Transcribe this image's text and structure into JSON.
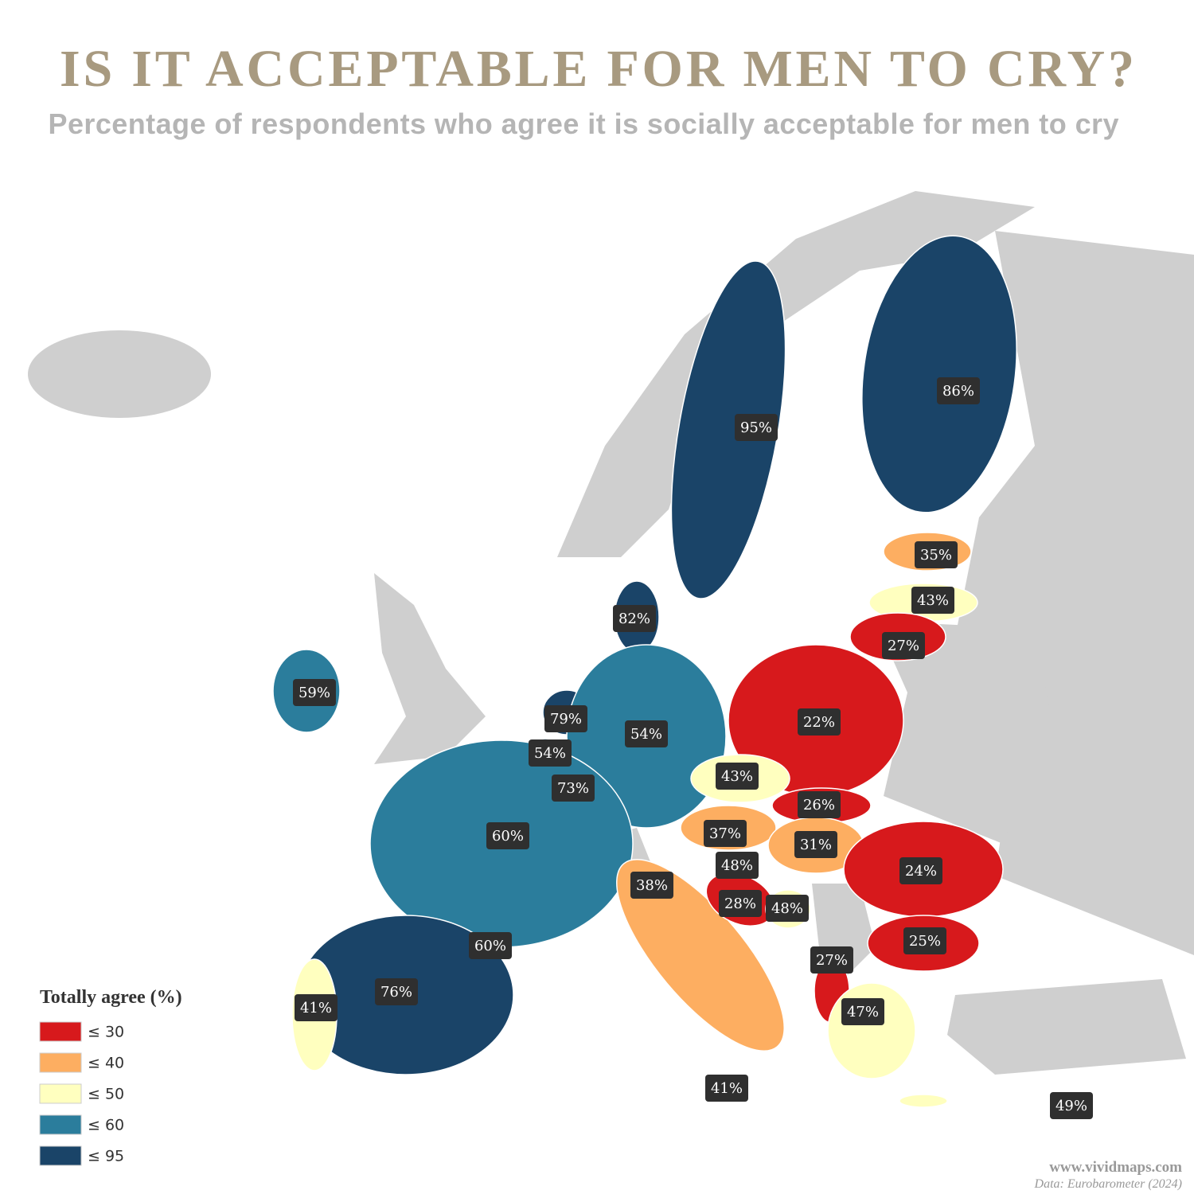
{
  "title": "IS IT ACCEPTABLE FOR MEN TO CRY?",
  "subtitle": "Percentage of respondents who agree it is socially acceptable for men to cry",
  "legend": {
    "title": "Totally agree (%)",
    "items": [
      {
        "label": "≤ 30",
        "max": 30,
        "color": "#d7191c"
      },
      {
        "label": "≤ 40",
        "max": 40,
        "color": "#fdae61"
      },
      {
        "label": "≤ 50",
        "max": 50,
        "color": "#ffffbf"
      },
      {
        "label": "≤ 60",
        "max": 60,
        "color": "#2b7d9c"
      },
      {
        "label": "≤ 95",
        "max": 95,
        "color": "#1a4468"
      }
    ]
  },
  "regions": {
    "values": [
      95,
      86,
      35,
      43,
      27,
      82,
      59,
      79,
      54,
      73,
      54,
      22,
      43,
      26,
      37,
      31,
      48,
      60,
      38,
      28,
      48,
      24,
      25,
      76,
      41,
      60,
      41,
      27,
      47,
      49
    ],
    "value_labels": [
      "95%",
      "86%",
      "35%",
      "43%",
      "27%",
      "82%",
      "59%",
      "79%",
      "54%",
      "73%",
      "54%",
      "22%",
      "43%",
      "26%",
      "37%",
      "31%",
      "48%",
      "60%",
      "38%",
      "28%",
      "48%",
      "24%",
      "25%",
      "76%",
      "41%",
      "60%",
      "41%",
      "27%",
      "47%",
      "49%"
    ]
  },
  "source": {
    "site": "www.vividmaps.com",
    "data": "Data: Eurobarometer (2024)"
  }
}
